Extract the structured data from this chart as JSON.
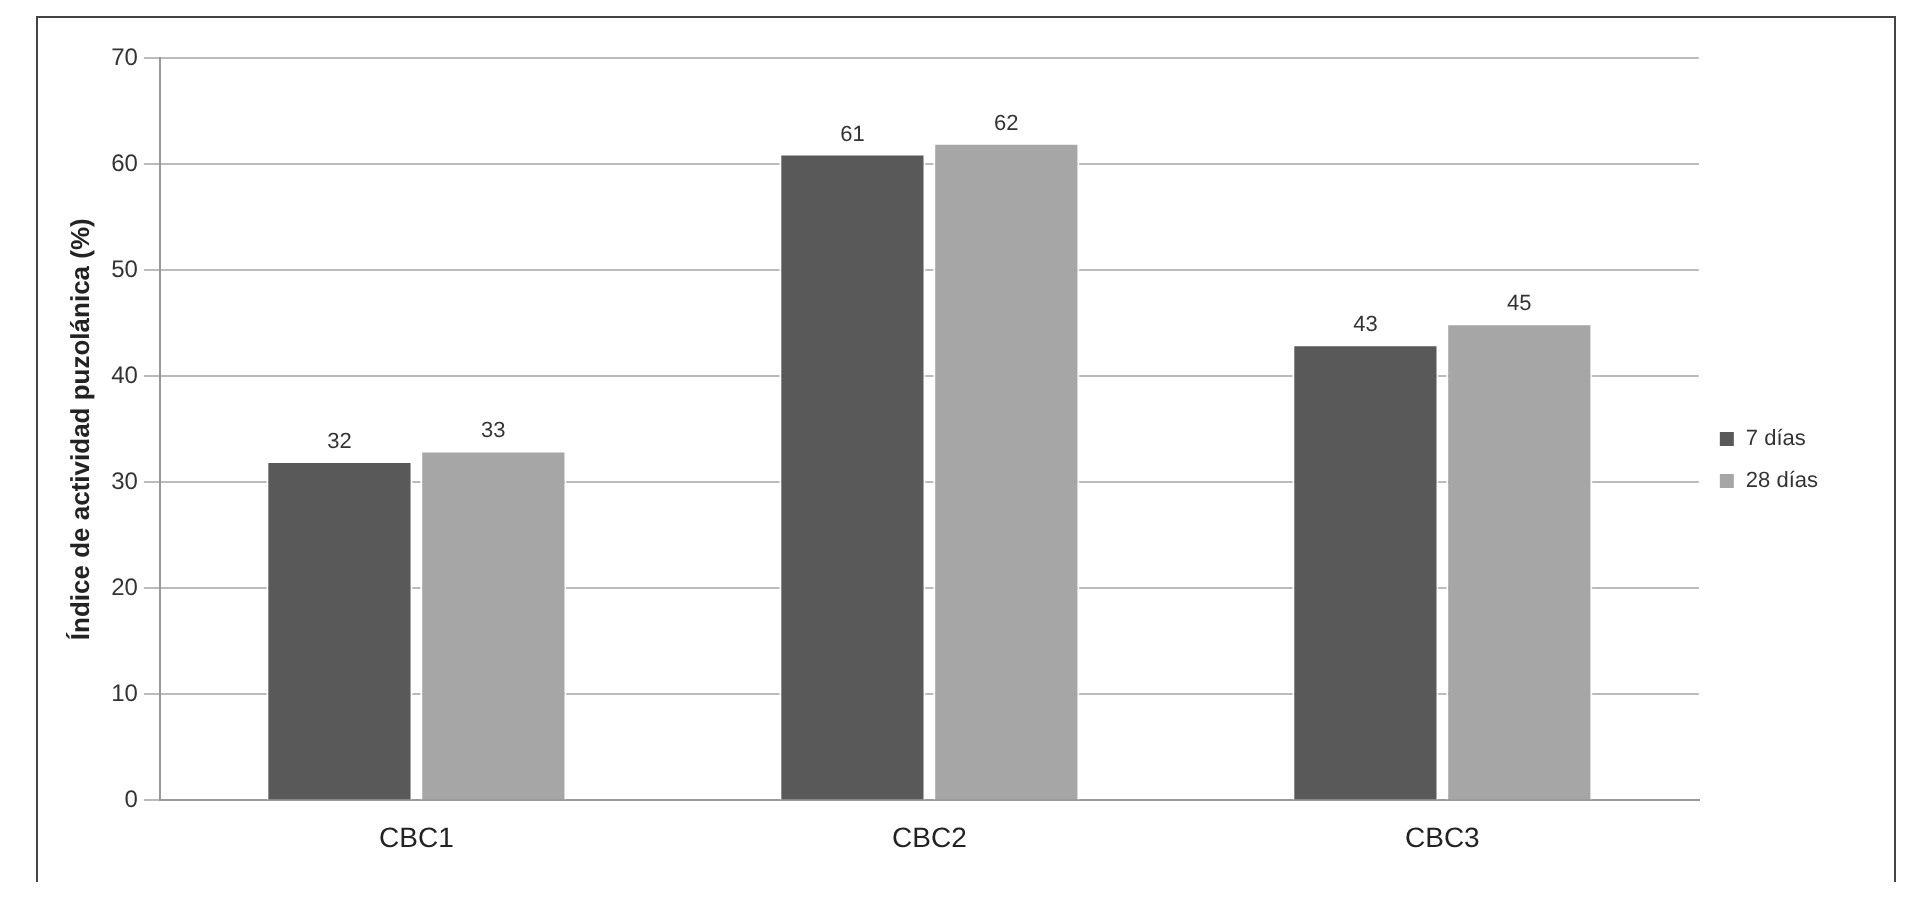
{
  "chart_data": {
    "type": "bar",
    "ylabel": "Índice de actividad puzolánica (%)",
    "categories": [
      "CBC1",
      "CBC2",
      "CBC3"
    ],
    "series": [
      {
        "name": "7 días",
        "color": "#595959",
        "values": [
          32,
          61,
          43
        ]
      },
      {
        "name": "28 días",
        "color": "#a6a6a6",
        "values": [
          33,
          62,
          45
        ]
      }
    ],
    "ylim": [
      0,
      70
    ],
    "yticks": [
      0,
      10,
      20,
      30,
      40,
      50,
      60,
      70
    ],
    "grid": "y",
    "legend": "right",
    "data_labels": true
  }
}
